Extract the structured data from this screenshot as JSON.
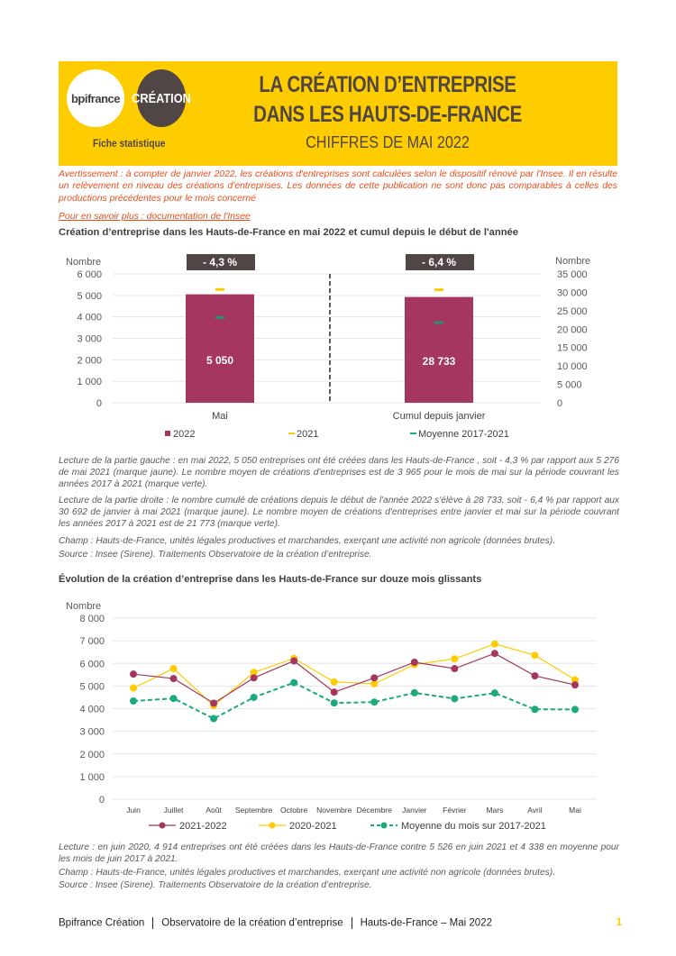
{
  "header": {
    "logo_bpi": "bpifrance",
    "logo_creation": "CRÉATION",
    "fiche": "Fiche statistique",
    "title_line1": "LA CRÉATION D’ENTREPRISE",
    "title_line2": "DANS LES HAUTS-DE-FRANCE",
    "subtitle": "CHIFFRES DE MAI 2022"
  },
  "warning": "Avertissement : à compter de janvier 2022, les créations d'entreprises sont calculées selon le dispositif rénové par l'Insee. Il en résulte un relèvement en niveau des créations d'entreprises. Les données de cette publication ne sont donc pas comparables à celles des productions précédentes pour le mois concerné",
  "link": "Pour en savoir plus : documentation de l'Insee",
  "section1": {
    "title": "Création d’entreprise dans les Hauts-de-France  en mai 2022 et cumul depuis le début de l'année",
    "lecture1": "Lecture de la partie gauche : en mai 2022, 5 050 entreprises ont été créées dans les Hauts-de-France , soit - 4,3 % par rapport aux 5 276 de mai 2021 (marque jaune). Le nombre moyen de créations d'entreprises est de 3 965 pour le mois de mai sur la période couvrant les années 2017 à 2021 (marque verte).",
    "lecture2": "Lecture de la partie droite : le nombre cumulé de créations depuis le début de l'année 2022 s'élève à 28 733, soit - 6,4 % par rapport aux 30 692 de janvier à mai 2021 (marque jaune). Le nombre moyen de créations d'entreprises entre janvier et mai sur la période couvrant les années 2017 à 2021 est de 21 773 (marque verte).",
    "champ": "Champ : Hauts-de-France, unités légales productives et marchandes, exerçant une activité non agricole (données brutes).",
    "source": "Source : Insee (Sirene). Traitements Observatoire de la création d’entreprise."
  },
  "section2": {
    "title": "Évolution de la création d’entreprise dans les Hauts-de-France  sur douze mois glissants",
    "lecture": "Lecture : en juin 2020, 4 914 entreprises ont été créées dans les Hauts-de-France  contre 5 526 en juin 2021 et 4 338 en moyenne pour les mois de juin 2017 à 2021.",
    "champ": "Champ : Hauts-de-France, unités légales productives et marchandes, exerçant une activité non agricole (données brutes).",
    "source": "Source : Insee (Sirene). Traitements Observatoire de la création d’entreprise."
  },
  "footer": {
    "a": "Bpifrance Création",
    "b": "Observatoire de la création d’entreprise",
    "c": "Hauts-de-France – Mai 2022",
    "page": "1"
  },
  "colors": {
    "yellow": "#FFCC00",
    "purple": "#A5365F",
    "green": "#1AAA7E",
    "dark": "#504645"
  },
  "chart_data": [
    {
      "type": "bar",
      "title": "Création d’entreprise dans les Hauts-de-France  en mai 2022 et cumul depuis le début de l'année",
      "categories": [
        "Mai",
        "Cumul depuis janvier"
      ],
      "series": [
        {
          "name": "2022",
          "values": [
            5050,
            28733
          ]
        },
        {
          "name": "2021",
          "values": [
            5276,
            30692
          ]
        },
        {
          "name": "Moyenne 2017-2021",
          "values": [
            3965,
            21773
          ]
        }
      ],
      "value_labels": [
        "5 050",
        "28 733"
      ],
      "change_labels": [
        "- 4,3 %",
        "- 6,4 %"
      ],
      "ylabel_left": "Nombre",
      "ylabel_right": "Nombre",
      "ylim_left": [
        0,
        6000
      ],
      "ylim_right": [
        0,
        35000
      ],
      "yticks_left": [
        "0",
        "1 000",
        "2 000",
        "3 000",
        "4 000",
        "5 000",
        "6 000"
      ],
      "yticks_right": [
        "0",
        "5 000",
        "10 000",
        "15 000",
        "20 000",
        "25 000",
        "30 000",
        "35 000"
      ],
      "legend": "bottom"
    },
    {
      "type": "line",
      "title": "Évolution de la création d’entreprise dans les Hauts-de-France  sur douze mois glissants",
      "categories": [
        "Juin",
        "Juillet",
        "Août",
        "Septembre",
        "Octobre",
        "Novembre",
        "Décembre",
        "Janvier",
        "Février",
        "Mars",
        "Avril",
        "Mai"
      ],
      "series": [
        {
          "name": "2021-2022",
          "values": [
            5526,
            5330,
            4240,
            5360,
            6110,
            4730,
            5360,
            6050,
            5770,
            6440,
            5450,
            5050
          ]
        },
        {
          "name": "2020-2021",
          "values": [
            4914,
            5770,
            4130,
            5600,
            6220,
            5180,
            5100,
            5950,
            6200,
            6860,
            6360,
            5276
          ]
        },
        {
          "name": "Moyenne du mois sur 2017-2021",
          "values": [
            4338,
            4450,
            3560,
            4500,
            5150,
            4250,
            4290,
            4700,
            4440,
            4690,
            3970,
            3965
          ]
        }
      ],
      "ylabel": "Nombre",
      "ylim": [
        0,
        8000
      ],
      "yticks": [
        "0",
        "1 000",
        "2 000",
        "3 000",
        "4 000",
        "5 000",
        "6 000",
        "7 000",
        "8 000"
      ],
      "grid": true,
      "legend": "bottom"
    }
  ]
}
